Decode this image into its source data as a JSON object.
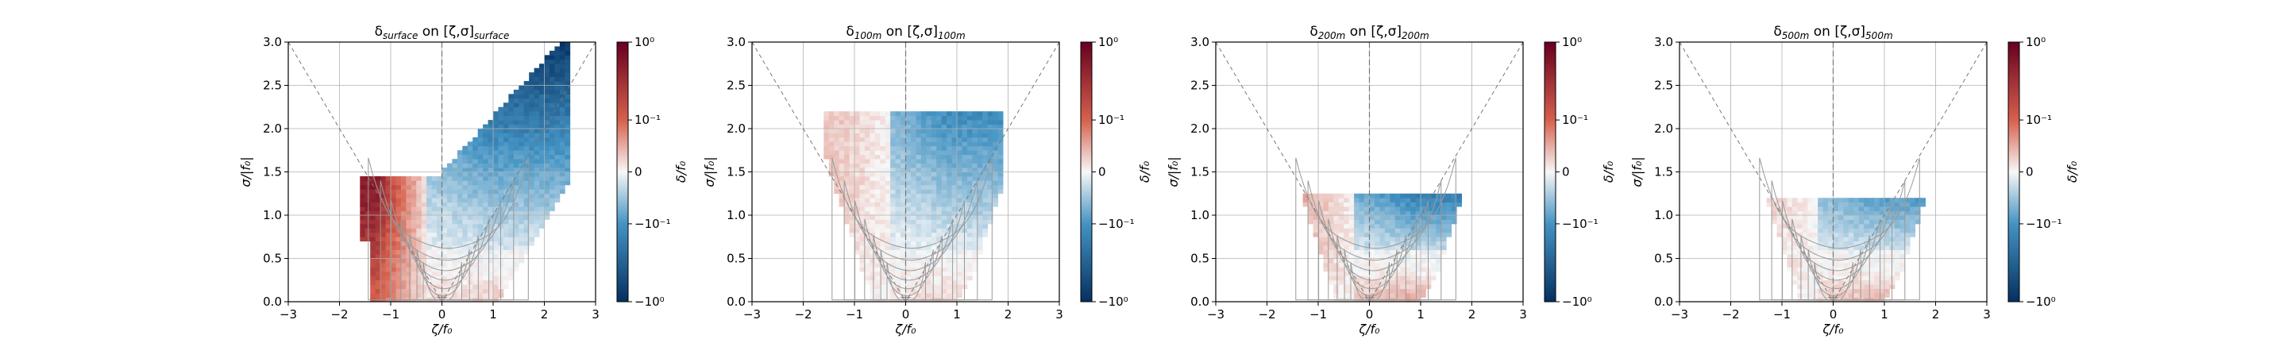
{
  "chart_data": [
    {
      "type": "heatmap",
      "title_main": "δ",
      "title_sub": "surface",
      "title_mid": " on [ζ,σ]",
      "title_sub2": "surface",
      "xlabel": "ζ/f₀",
      "ylabel": "σ/|f₀|",
      "xlim": [
        -3,
        3
      ],
      "ylim": [
        0,
        3
      ],
      "xticks": [
        "−3",
        "−2",
        "−1",
        "0",
        "1",
        "2",
        "3"
      ],
      "yticks": [
        "0.0",
        "0.5",
        "1.0",
        "1.5",
        "2.0",
        "2.5",
        "3.0"
      ],
      "colorbar": {
        "label": "δ/f₀",
        "scale": "symlog",
        "ticks": [
          "10⁰",
          "10⁻¹",
          "0",
          "−10⁻¹",
          "−10⁰"
        ],
        "colors": [
          "#67001f",
          "#d6604d",
          "#f7f7f7",
          "#4393c3",
          "#053061"
        ]
      },
      "grid": true,
      "max_sigma_top": 3.0,
      "pos_peak": 0.85,
      "neg_peak": 0.95
    },
    {
      "type": "heatmap",
      "title_main": "δ",
      "title_sub": "100m",
      "title_mid": " on [ζ,σ]",
      "title_sub2": "100m",
      "xlabel": "ζ/f₀",
      "ylabel": "σ/|f₀|",
      "xlim": [
        -3,
        3
      ],
      "ylim": [
        0,
        3
      ],
      "xticks": [
        "−3",
        "−2",
        "−1",
        "0",
        "1",
        "2",
        "3"
      ],
      "yticks": [
        "0.0",
        "0.5",
        "1.0",
        "1.5",
        "2.0",
        "2.5",
        "3.0"
      ],
      "colorbar": {
        "label": "δ/f₀",
        "scale": "symlog",
        "ticks": [
          "10⁰",
          "10⁻¹",
          "0",
          "−10⁻¹",
          "−10⁰"
        ],
        "colors": [
          "#67001f",
          "#d6604d",
          "#f7f7f7",
          "#4393c3",
          "#053061"
        ]
      },
      "grid": true,
      "max_sigma_top": 2.2,
      "pos_peak": 0.15,
      "neg_peak": 0.55
    },
    {
      "type": "heatmap",
      "title_main": "δ",
      "title_sub": "200m",
      "title_mid": " on [ζ,σ]",
      "title_sub2": "200m",
      "xlabel": "ζ/f₀",
      "ylabel": "σ/|f₀|",
      "xlim": [
        -3,
        3
      ],
      "ylim": [
        0,
        3
      ],
      "xticks": [
        "−3",
        "−2",
        "−1",
        "0",
        "1",
        "2",
        "3"
      ],
      "yticks": [
        "0.0",
        "0.5",
        "1.0",
        "1.5",
        "2.0",
        "2.5",
        "3.0"
      ],
      "colorbar": {
        "label": "δ/f₀",
        "scale": "symlog",
        "ticks": [
          "10⁰",
          "10⁻¹",
          "0",
          "−10⁻¹",
          "−10⁰"
        ],
        "colors": [
          "#67001f",
          "#d6604d",
          "#f7f7f7",
          "#4393c3",
          "#053061"
        ]
      },
      "grid": true,
      "max_sigma_top": 1.25,
      "pos_peak": 0.25,
      "neg_peak": 0.6
    },
    {
      "type": "heatmap",
      "title_main": "δ",
      "title_sub": "500m",
      "title_mid": " on [ζ,σ]",
      "title_sub2": "500m",
      "xlabel": "ζ/f₀",
      "ylabel": "σ/|f₀|",
      "xlim": [
        -3,
        3
      ],
      "ylim": [
        0,
        3
      ],
      "xticks": [
        "−3",
        "−2",
        "−1",
        "0",
        "1",
        "2",
        "3"
      ],
      "yticks": [
        "0.0",
        "0.5",
        "1.0",
        "1.5",
        "2.0",
        "2.5",
        "3.0"
      ],
      "colorbar": {
        "label": "δ/f₀",
        "scale": "symlog",
        "ticks": [
          "10⁰",
          "10⁻¹",
          "0",
          "−10⁻¹",
          "−10⁰"
        ],
        "colors": [
          "#67001f",
          "#d6604d",
          "#f7f7f7",
          "#4393c3",
          "#053061"
        ]
      },
      "grid": true,
      "max_sigma_top": 1.2,
      "pos_peak": 0.12,
      "neg_peak": 0.45
    }
  ]
}
